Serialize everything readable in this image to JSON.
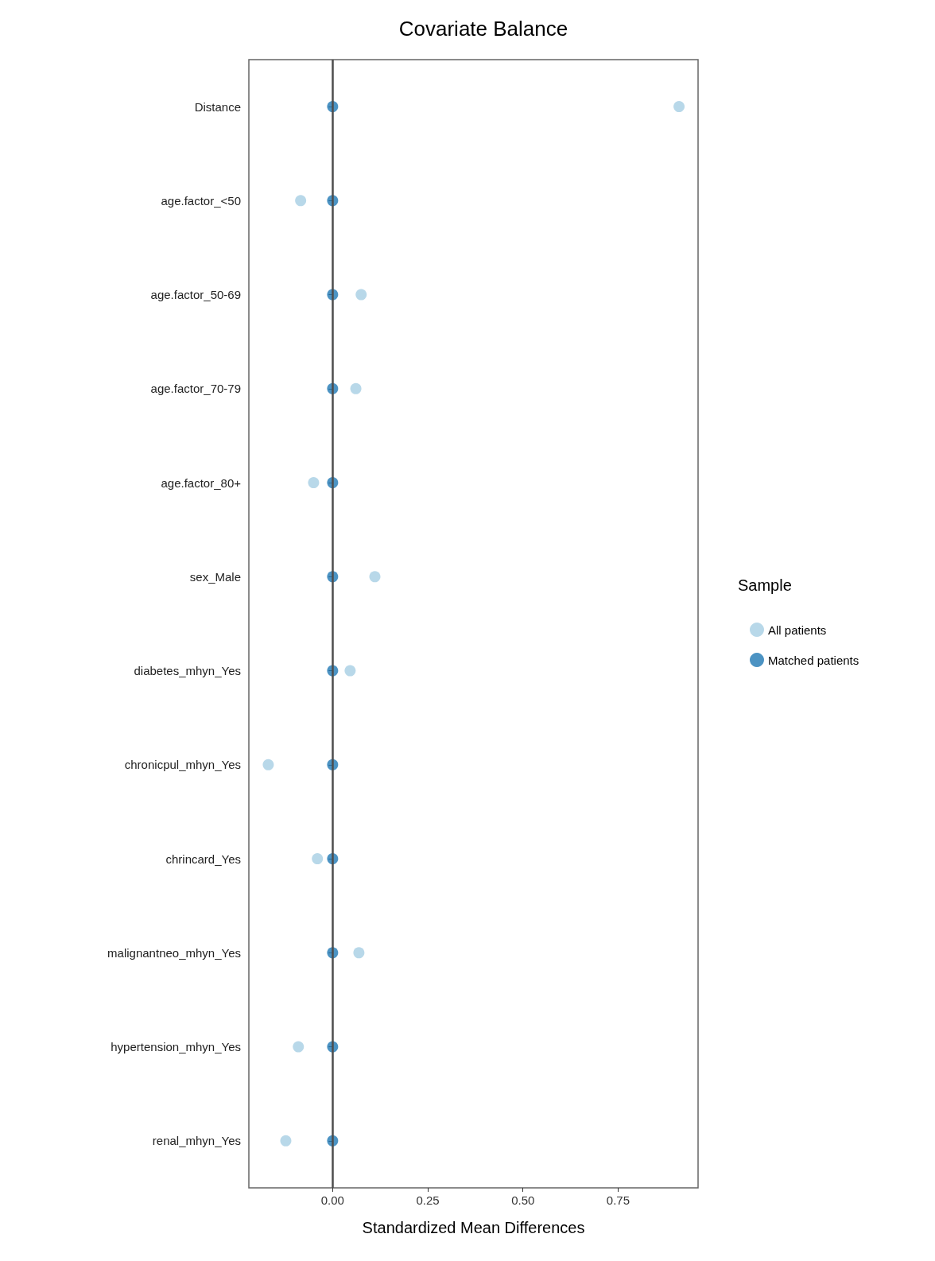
{
  "chart_data": {
    "type": "scatter",
    "title": "Covariate Balance",
    "xlabel": "Standardized Mean Differences",
    "legend_title": "Sample",
    "categories": [
      "Distance",
      "age.factor_<50",
      "age.factor_50-69",
      "age.factor_70-79",
      "age.factor_80+",
      "sex_Male",
      "diabetes_mhyn_Yes",
      "chronicpul_mhyn_Yes",
      "chrincard_Yes",
      "malignantneo_mhyn_Yes",
      "hypertension_mhyn_Yes",
      "renal_mhyn_Yes"
    ],
    "series": [
      {
        "name": "All patients",
        "color": "#a6cee3",
        "values": [
          0.91,
          -0.084,
          0.075,
          0.061,
          -0.05,
          0.111,
          0.046,
          -0.169,
          -0.04,
          0.069,
          -0.09,
          -0.123
        ]
      },
      {
        "name": "Matched patients",
        "color": "#1f78b4",
        "values": [
          0,
          0,
          0,
          0,
          0,
          0,
          0,
          0,
          0,
          0,
          0,
          0
        ]
      }
    ],
    "xlim": [
      -0.22,
      0.96
    ],
    "xticks": [
      {
        "value": 0,
        "label": "0.00"
      },
      {
        "value": 0.25,
        "label": "0.25"
      },
      {
        "value": 0.5,
        "label": "0.50"
      },
      {
        "value": 0.75,
        "label": "0.75"
      }
    ],
    "ref_lines": [
      {
        "axis": "x",
        "value": 0,
        "color": "#4d4d4d"
      }
    ],
    "orientation": "horizontal",
    "grid": false,
    "legend": "right",
    "marker": "circle"
  }
}
